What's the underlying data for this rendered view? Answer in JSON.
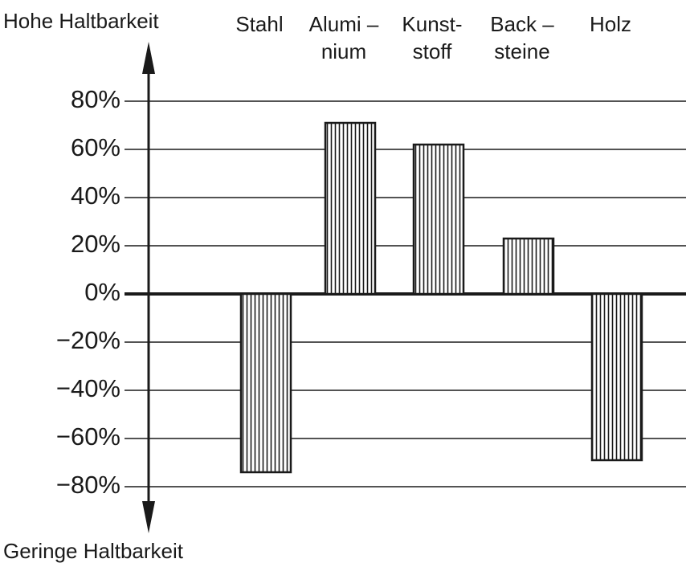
{
  "chart_data": {
    "type": "bar",
    "y_label_top": "Hohe Haltbarkeit",
    "y_label_bottom": "Geringe Haltbarkeit",
    "categories": [
      [
        "Stahl"
      ],
      [
        "Alumi –",
        "nium"
      ],
      [
        "Kunst-",
        "stoff"
      ],
      [
        "Back –",
        "steine"
      ],
      [
        "Holz"
      ]
    ],
    "values": [
      -74,
      71,
      62,
      23,
      -69
    ],
    "color": "#1a1a1a",
    "ylim": [
      -80,
      80
    ],
    "yticks": [
      {
        "value": 80,
        "label": "80%"
      },
      {
        "value": 60,
        "label": "60%"
      },
      {
        "value": 40,
        "label": "40%"
      },
      {
        "value": 20,
        "label": "20%"
      },
      {
        "value": 0,
        "label": "0%"
      },
      {
        "value": -20,
        "label": "−20%"
      },
      {
        "value": -40,
        "label": "−40%"
      },
      {
        "value": -60,
        "label": "−60%"
      },
      {
        "value": -80,
        "label": "−80%"
      }
    ],
    "grid": true
  }
}
